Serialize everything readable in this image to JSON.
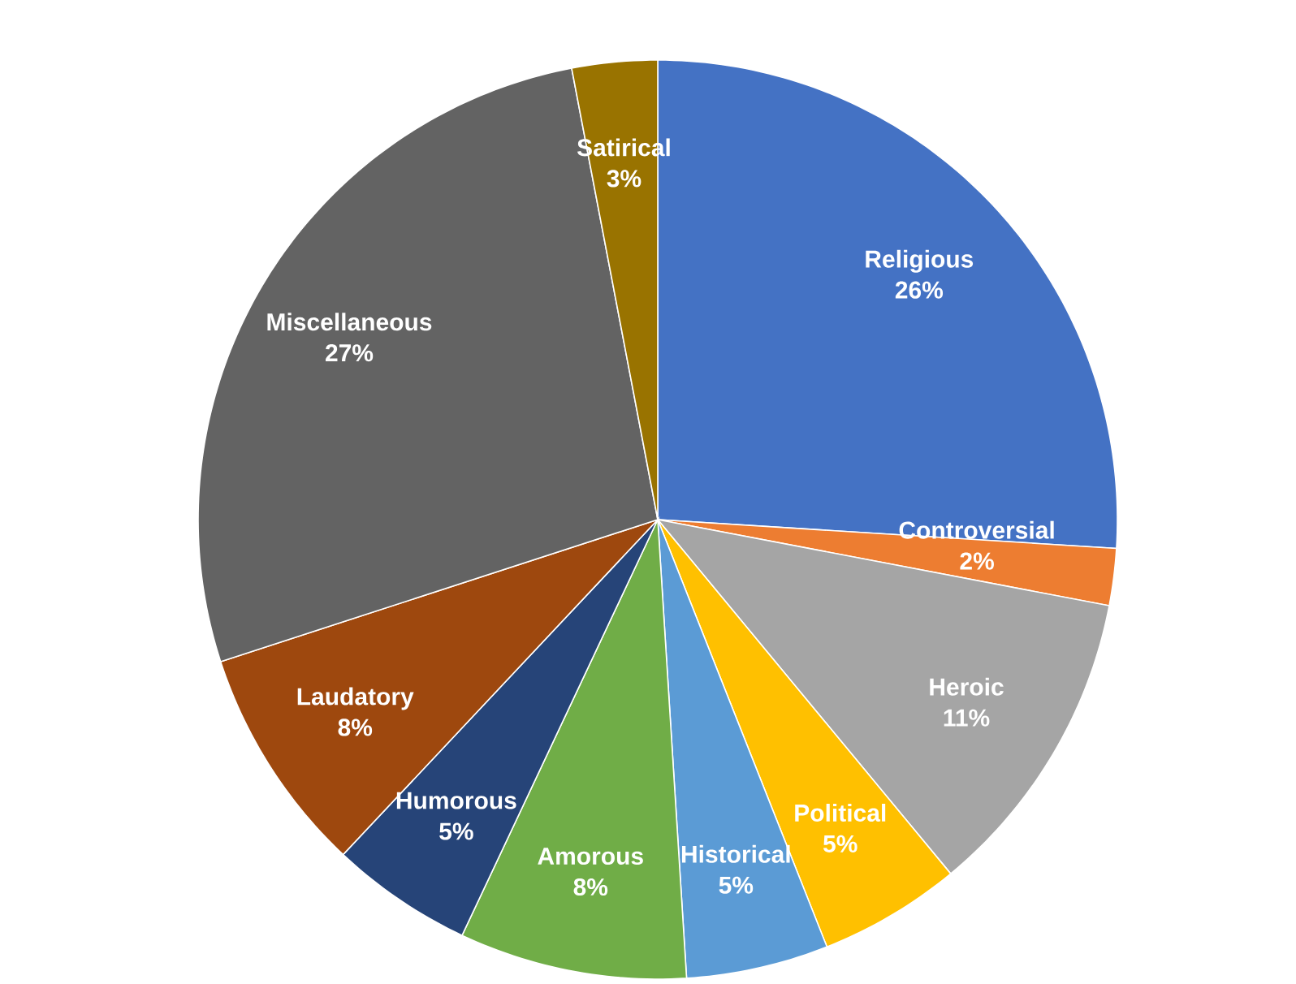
{
  "chart_data": {
    "type": "pie",
    "categories": [
      "Religious",
      "Controversial",
      "Heroic",
      "Political",
      "Historical",
      "Amorous",
      "Humorous",
      "Laudatory",
      "Miscellaneous",
      "Satirical"
    ],
    "values": [
      26,
      2,
      11,
      5,
      5,
      8,
      5,
      8,
      27,
      3
    ],
    "value_labels": [
      "26%",
      "2%",
      "11%",
      "5%",
      "5%",
      "8%",
      "5%",
      "8%",
      "27%",
      "3%"
    ],
    "colors": [
      "#4472c4",
      "#ed7d31",
      "#a5a5a5",
      "#ffc000",
      "#5b9bd5",
      "#70ad47",
      "#264478",
      "#9e480e",
      "#636363",
      "#997300"
    ]
  }
}
